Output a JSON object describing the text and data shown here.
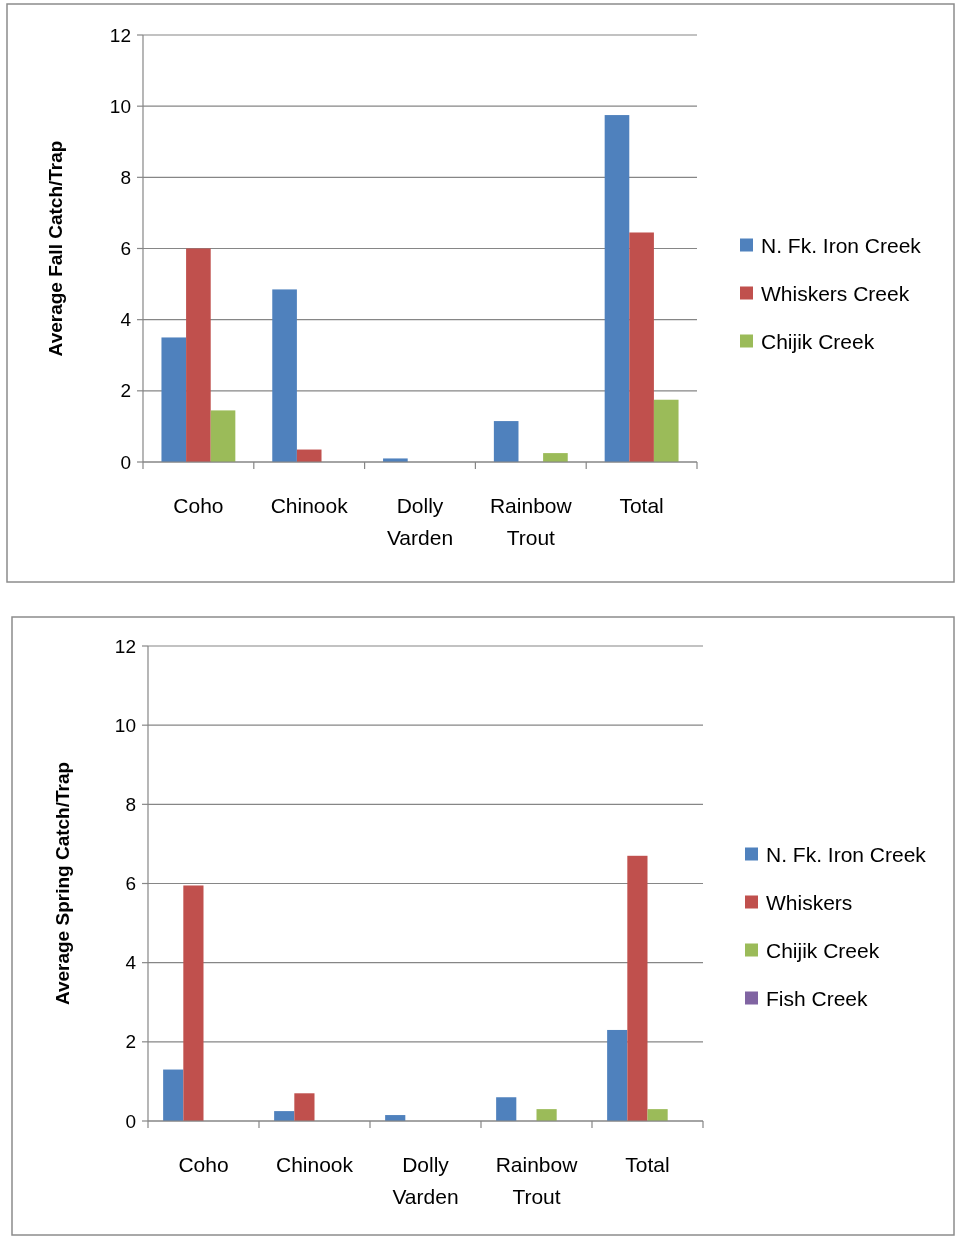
{
  "chart_data": [
    {
      "type": "bar",
      "ylabel": "Average Fall Catch/Trap",
      "categories": [
        "Coho",
        "Chinook",
        "Dolly Varden",
        "Rainbow Trout",
        "Total"
      ],
      "series": [
        {
          "name": "N. Fk. Iron Creek",
          "color": "#4f81bd",
          "values": [
            3.5,
            4.85,
            0.1,
            1.15,
            9.75
          ]
        },
        {
          "name": "Whiskers Creek",
          "color": "#c0504d",
          "values": [
            6.0,
            0.35,
            0,
            0,
            6.45
          ]
        },
        {
          "name": "Chijik Creek",
          "color": "#9bbb59",
          "values": [
            1.45,
            0,
            0,
            0.25,
            1.75
          ]
        }
      ],
      "ylim": [
        0,
        12
      ],
      "yticks": [
        0,
        2,
        4,
        6,
        8,
        10,
        12
      ],
      "grid": "y",
      "legend": "right"
    },
    {
      "type": "bar",
      "ylabel": "Average Spring Catch/Trap",
      "categories": [
        "Coho",
        "Chinook",
        "Dolly Varden",
        "Rainbow Trout",
        "Total"
      ],
      "series": [
        {
          "name": "N. Fk. Iron Creek",
          "color": "#4f81bd",
          "values": [
            1.3,
            0.25,
            0.15,
            0.6,
            2.3
          ]
        },
        {
          "name": "Whiskers",
          "color": "#c0504d",
          "values": [
            5.95,
            0.7,
            0,
            0,
            6.7
          ]
        },
        {
          "name": "Chijik Creek",
          "color": "#9bbb59",
          "values": [
            0,
            0,
            0,
            0.3,
            0.3
          ]
        },
        {
          "name": "Fish Creek",
          "color": "#8064a2",
          "values": [
            0,
            0,
            0,
            0,
            0
          ]
        }
      ],
      "ylim": [
        0,
        12
      ],
      "yticks": [
        0,
        2,
        4,
        6,
        8,
        10,
        12
      ],
      "grid": "y",
      "legend": "right"
    }
  ]
}
